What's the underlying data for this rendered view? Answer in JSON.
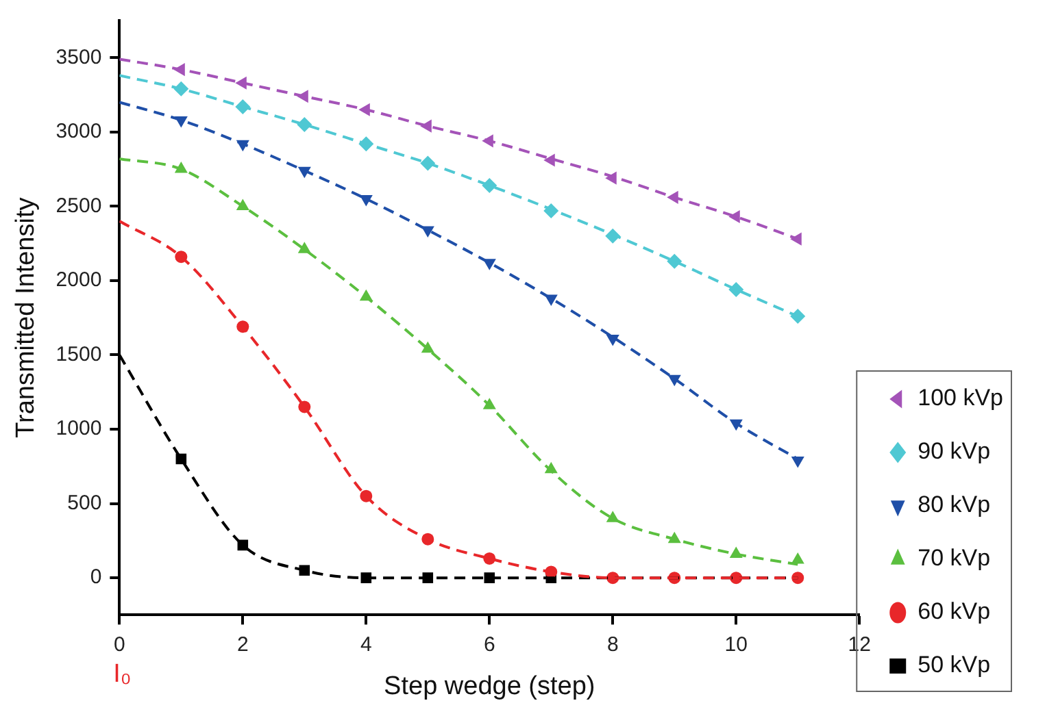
{
  "chart_data": {
    "type": "scatter",
    "xlabel": "Step wedge (step)",
    "ylabel": "Transmitted Intensity",
    "xlim": [
      0,
      12
    ],
    "xticks": [
      0,
      2,
      4,
      6,
      8,
      10,
      12
    ],
    "ylim": [
      -250,
      3750
    ],
    "yticks": [
      0,
      500,
      1000,
      1500,
      2000,
      2500,
      3000,
      3500
    ],
    "grid": false,
    "legend": "right",
    "annotations": [
      "I₀"
    ],
    "series": [
      {
        "type": "line",
        "line_style": "dashed",
        "marker": "none",
        "color": "#a453b8",
        "x": [
          0,
          1,
          2,
          3,
          4,
          5,
          6,
          7,
          8,
          9,
          10,
          11
        ],
        "values": [
          3490,
          3420,
          3330,
          3240,
          3150,
          3040,
          2940,
          2820,
          2700,
          2560,
          2430,
          2280
        ]
      },
      {
        "type": "line",
        "line_style": "dashed",
        "marker": "none",
        "color": "#4fc8d3",
        "x": [
          0,
          1,
          2,
          3,
          4,
          5,
          6,
          7,
          8,
          9,
          10,
          11
        ],
        "values": [
          3380,
          3290,
          3170,
          3050,
          2920,
          2790,
          2640,
          2480,
          2310,
          2130,
          1940,
          1760
        ]
      },
      {
        "type": "line",
        "line_style": "dashed",
        "marker": "none",
        "color": "#1f4fa8",
        "x": [
          0,
          1,
          2,
          3,
          4,
          5,
          6,
          7,
          8,
          9,
          10,
          11
        ],
        "values": [
          3200,
          3080,
          2920,
          2740,
          2550,
          2340,
          2120,
          1880,
          1620,
          1340,
          1040,
          800
        ]
      },
      {
        "type": "line",
        "line_style": "dashed",
        "marker": "none",
        "color": "#5bbf3f",
        "x": [
          0,
          1,
          2,
          3,
          4,
          5,
          6,
          7,
          8,
          9,
          10,
          11
        ],
        "values": [
          2820,
          2750,
          2500,
          2210,
          1890,
          1540,
          1160,
          720,
          400,
          260,
          160,
          90
        ]
      },
      {
        "type": "line",
        "line_style": "dashed",
        "marker": "none",
        "color": "#e8272a",
        "x": [
          0,
          1,
          2,
          3,
          4,
          5,
          6,
          7,
          8,
          9,
          10,
          11
        ],
        "values": [
          2400,
          2160,
          1690,
          1150,
          550,
          260,
          130,
          40,
          0,
          0,
          0,
          0
        ]
      },
      {
        "type": "line",
        "line_style": "dashed",
        "marker": "none",
        "color": "#000000",
        "x": [
          0,
          1,
          2,
          3,
          4,
          5,
          6,
          7,
          8,
          9,
          10,
          11
        ],
        "values": [
          1500,
          800,
          220,
          50,
          0,
          0,
          0,
          0,
          0,
          0,
          0,
          0
        ]
      },
      {
        "name": "100 kVp",
        "marker": "triangle-left",
        "color": "#a453b8",
        "x": [
          1,
          2,
          3,
          4,
          5,
          6,
          7,
          8,
          9,
          10,
          11
        ],
        "values": [
          3420,
          3330,
          3240,
          3150,
          3040,
          2940,
          2810,
          2690,
          2560,
          2430,
          2280
        ]
      },
      {
        "name": "90 kVp",
        "marker": "diamond",
        "color": "#4fc8d3",
        "x": [
          1,
          2,
          3,
          4,
          5,
          6,
          7,
          8,
          9,
          10,
          11
        ],
        "values": [
          3290,
          3170,
          3050,
          2920,
          2790,
          2640,
          2470,
          2300,
          2130,
          1940,
          1760
        ]
      },
      {
        "name": "80 kVp",
        "marker": "triangle-down",
        "color": "#1f4fa8",
        "x": [
          1,
          2,
          3,
          4,
          5,
          6,
          7,
          8,
          9,
          10,
          11
        ],
        "values": [
          3080,
          2920,
          2740,
          2550,
          2340,
          2120,
          1880,
          1610,
          1340,
          1040,
          790
        ]
      },
      {
        "name": "70 kVp",
        "marker": "triangle",
        "color": "#5bbf3f",
        "x": [
          1,
          2,
          3,
          4,
          5,
          6,
          7,
          8,
          9,
          10,
          11
        ],
        "values": [
          2750,
          2500,
          2210,
          1890,
          1540,
          1160,
          730,
          400,
          260,
          160,
          120
        ]
      },
      {
        "name": "60 kVp",
        "marker": "circle",
        "color": "#e8272a",
        "x": [
          1,
          2,
          3,
          4,
          5,
          6,
          7,
          8,
          9,
          10,
          11
        ],
        "values": [
          2160,
          1690,
          1150,
          550,
          260,
          130,
          40,
          0,
          0,
          0,
          0
        ]
      },
      {
        "name": "50 kVp",
        "marker": "square",
        "color": "#000000",
        "x": [
          1,
          2,
          3,
          4,
          5,
          6,
          7
        ],
        "values": [
          800,
          220,
          50,
          0,
          0,
          0,
          0
        ]
      }
    ]
  }
}
